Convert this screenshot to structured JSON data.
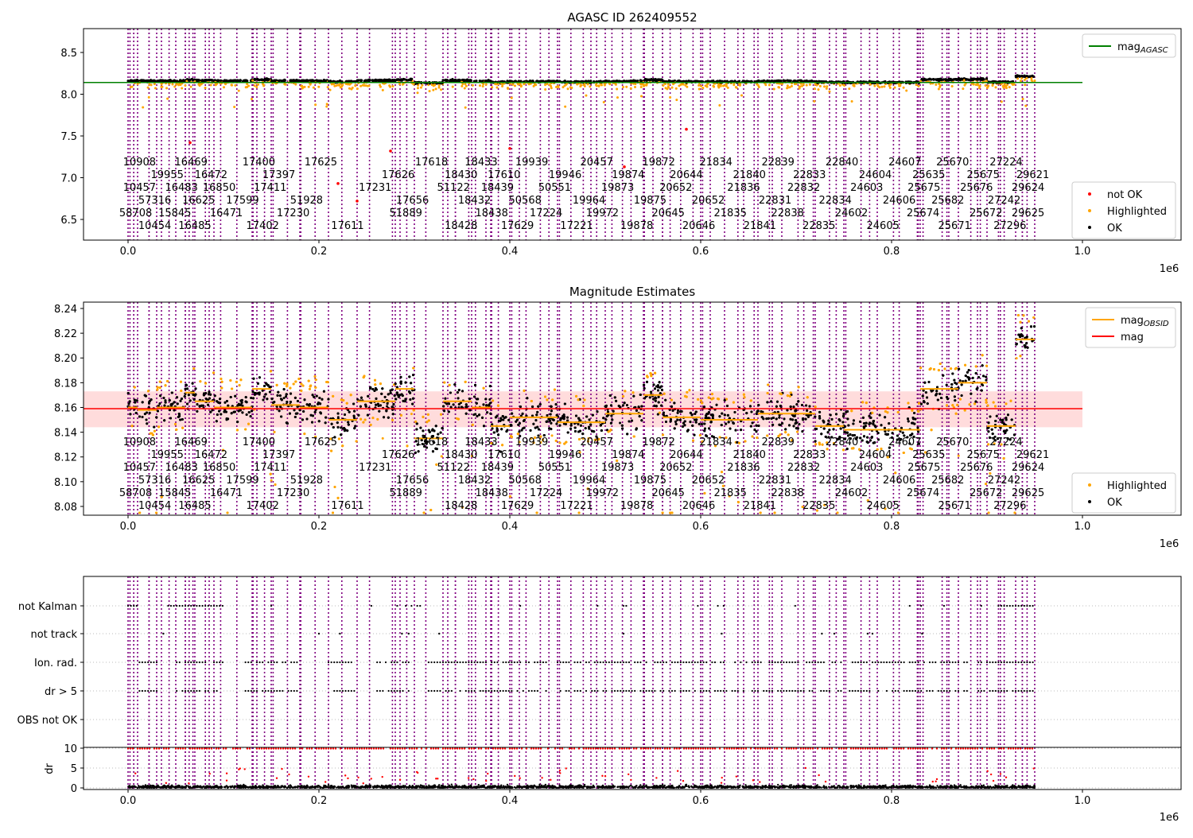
{
  "chart_data": [
    {
      "type": "scatter",
      "title": "AGASC ID 262409552",
      "xlabel": "",
      "ylabel": "",
      "xlim": [
        -0.055,
        1.1
      ],
      "x_scale_label": "1e6",
      "ylim": [
        6.25,
        8.8
      ],
      "xticks": [
        "0.0",
        "0.2",
        "0.4",
        "0.6",
        "0.8",
        "1.0"
      ],
      "yticks": [
        "6.5",
        "7.0",
        "7.5",
        "8.0",
        "8.5"
      ],
      "mag_agasc": 8.14,
      "legend_top": {
        "placement": "top-right",
        "entries": [
          {
            "label": "mag",
            "sub": "AGASC",
            "color": "#008000"
          }
        ]
      },
      "legend_bottom": {
        "placement": "lower-right",
        "entries": [
          {
            "label": "not OK",
            "color": "#ff0000"
          },
          {
            "label": "Highlighted",
            "color": "#ffa500"
          },
          {
            "label": "OK",
            "color": "#000000"
          }
        ]
      }
    },
    {
      "type": "scatter",
      "title": "Magnitude Estimates",
      "xlim": [
        -0.055,
        1.1
      ],
      "x_scale_label": "1e6",
      "ylim": [
        8.074,
        8.245
      ],
      "xticks": [
        "0.0",
        "0.2",
        "0.4",
        "0.6",
        "0.8",
        "1.0"
      ],
      "yticks": [
        "8.08",
        "8.10",
        "8.12",
        "8.14",
        "8.16",
        "8.18",
        "8.20",
        "8.22",
        "8.24"
      ],
      "mag": 8.159,
      "mag_band": [
        8.144,
        8.173
      ],
      "legend_top": {
        "placement": "top-right",
        "entries": [
          {
            "label": "mag",
            "sub": "OBSID",
            "color": "#ffa500"
          },
          {
            "label": "mag",
            "sub": "",
            "color": "#ff0000"
          }
        ]
      },
      "legend_bottom": {
        "placement": "lower-right",
        "entries": [
          {
            "label": "Highlighted",
            "color": "#ffa500"
          },
          {
            "label": "OK",
            "color": "#000000"
          }
        ]
      }
    },
    {
      "type": "scatter",
      "title": "",
      "xlim": [
        -0.055,
        1.1
      ],
      "x_scale_label": "1e6",
      "xticks": [
        "0.0",
        "0.2",
        "0.4",
        "0.6",
        "0.8",
        "1.0"
      ],
      "flag_categories": [
        "not Kalman",
        "not track",
        "Ion. rad.",
        "dr > 5",
        "OBS not OK"
      ],
      "dr_ylabel": "dr",
      "dr_yticks": [
        "0",
        "5",
        "10"
      ],
      "dr_ylim": [
        -0.5,
        10.2
      ]
    }
  ],
  "segments": [
    [
      0.0,
      0.01,
      8.16
    ],
    [
      0.01,
      0.03,
      8.158
    ],
    [
      0.03,
      0.06,
      8.16
    ],
    [
      0.06,
      0.07,
      8.172
    ],
    [
      0.07,
      0.09,
      8.165
    ],
    [
      0.09,
      0.13,
      8.16
    ],
    [
      0.13,
      0.15,
      8.175
    ],
    [
      0.15,
      0.18,
      8.162
    ],
    [
      0.18,
      0.21,
      8.16
    ],
    [
      0.21,
      0.24,
      8.15
    ],
    [
      0.24,
      0.28,
      8.165
    ],
    [
      0.28,
      0.3,
      8.175
    ],
    [
      0.3,
      0.33,
      8.135
    ],
    [
      0.33,
      0.36,
      8.165
    ],
    [
      0.36,
      0.38,
      8.16
    ],
    [
      0.38,
      0.4,
      8.145
    ],
    [
      0.4,
      0.45,
      8.152
    ],
    [
      0.45,
      0.5,
      8.148
    ],
    [
      0.5,
      0.54,
      8.155
    ],
    [
      0.54,
      0.56,
      8.17
    ],
    [
      0.56,
      0.6,
      8.152
    ],
    [
      0.6,
      0.66,
      8.15
    ],
    [
      0.66,
      0.72,
      8.155
    ],
    [
      0.72,
      0.75,
      8.145
    ],
    [
      0.75,
      0.83,
      8.142
    ],
    [
      0.83,
      0.87,
      8.175
    ],
    [
      0.87,
      0.9,
      8.18
    ],
    [
      0.9,
      0.93,
      8.145
    ],
    [
      0.93,
      0.95,
      8.215
    ]
  ],
  "obsid_labels": {
    "row1": [
      [
        "10908",
        0.012
      ],
      [
        "19955",
        0.041
      ],
      [
        "16469",
        0.066
      ],
      [
        "16472",
        0.087
      ],
      [
        "17400",
        0.137
      ],
      [
        "17397",
        0.158
      ],
      [
        "17625",
        0.202
      ],
      [
        "17626",
        0.283
      ],
      [
        "17618",
        0.318
      ],
      [
        "18430",
        0.349
      ],
      [
        "18433",
        0.37
      ],
      [
        "17610",
        0.394
      ],
      [
        "19939",
        0.423
      ],
      [
        "19946",
        0.458
      ],
      [
        "20457",
        0.491
      ],
      [
        "19874",
        0.524
      ],
      [
        "19872",
        0.556
      ],
      [
        "20644",
        0.585
      ],
      [
        "21834",
        0.616
      ],
      [
        "21840",
        0.651
      ],
      [
        "22839",
        0.681
      ],
      [
        "22833",
        0.714
      ],
      [
        "22840",
        0.748
      ],
      [
        "24604",
        0.783
      ],
      [
        "24607",
        0.814
      ],
      [
        "25635",
        0.839
      ],
      [
        "25670",
        0.864
      ],
      [
        "25675",
        0.896
      ],
      [
        "27224",
        0.92
      ],
      [
        "29621",
        0.948
      ]
    ],
    "row2": [
      [
        "10457",
        0.012
      ],
      [
        "57316",
        0.028
      ],
      [
        "16483",
        0.056
      ],
      [
        "16625",
        0.074
      ],
      [
        "16850",
        0.091
      ],
      [
        "17599",
        0.12
      ],
      [
        "17411",
        0.149
      ],
      [
        "51928",
        0.187
      ],
      [
        "17231",
        0.259
      ],
      [
        "17656",
        0.298
      ],
      [
        "51122",
        0.341
      ],
      [
        "18432",
        0.363
      ],
      [
        "18439",
        0.387
      ],
      [
        "50568",
        0.416
      ],
      [
        "50551",
        0.447
      ],
      [
        "19964",
        0.483
      ],
      [
        "19873",
        0.513
      ],
      [
        "19875",
        0.547
      ],
      [
        "20652",
        0.574
      ],
      [
        "20652",
        0.608
      ],
      [
        "21836",
        0.645
      ],
      [
        "22831",
        0.678
      ],
      [
        "22832",
        0.708
      ],
      [
        "22834",
        0.741
      ],
      [
        "24603",
        0.774
      ],
      [
        "24606",
        0.808
      ],
      [
        "25675",
        0.834
      ],
      [
        "25682",
        0.859
      ],
      [
        "25676",
        0.889
      ],
      [
        "27242",
        0.918
      ],
      [
        "29624",
        0.943
      ]
    ],
    "row3": [
      [
        "58708",
        0.008
      ],
      [
        "10454",
        0.028
      ],
      [
        "15845",
        0.049
      ],
      [
        "16485",
        0.07
      ],
      [
        "16471",
        0.103
      ],
      [
        "17402",
        0.141
      ],
      [
        "17230",
        0.173
      ],
      [
        "17611",
        0.23
      ],
      [
        "51889",
        0.291
      ],
      [
        "18428",
        0.349
      ],
      [
        "18438",
        0.381
      ],
      [
        "17629",
        0.408
      ],
      [
        "17224",
        0.438
      ],
      [
        "17221",
        0.47
      ],
      [
        "19972",
        0.497
      ],
      [
        "19878",
        0.533
      ],
      [
        "20645",
        0.566
      ],
      [
        "20646",
        0.598
      ],
      [
        "21835",
        0.631
      ],
      [
        "21841",
        0.662
      ],
      [
        "22838",
        0.691
      ],
      [
        "22835",
        0.724
      ],
      [
        "24602",
        0.758
      ],
      [
        "24605",
        0.791
      ],
      [
        "25674",
        0.833
      ],
      [
        "25671",
        0.866
      ],
      [
        "25672",
        0.899
      ],
      [
        "27296",
        0.924
      ],
      [
        "29625",
        0.943
      ]
    ]
  },
  "colors": {
    "ok": "#000000",
    "highlighted": "#ffa500",
    "not_ok": "#ff0000",
    "agasc": "#008000",
    "obsid_line": "#800080",
    "band": "#ffc0c0"
  }
}
